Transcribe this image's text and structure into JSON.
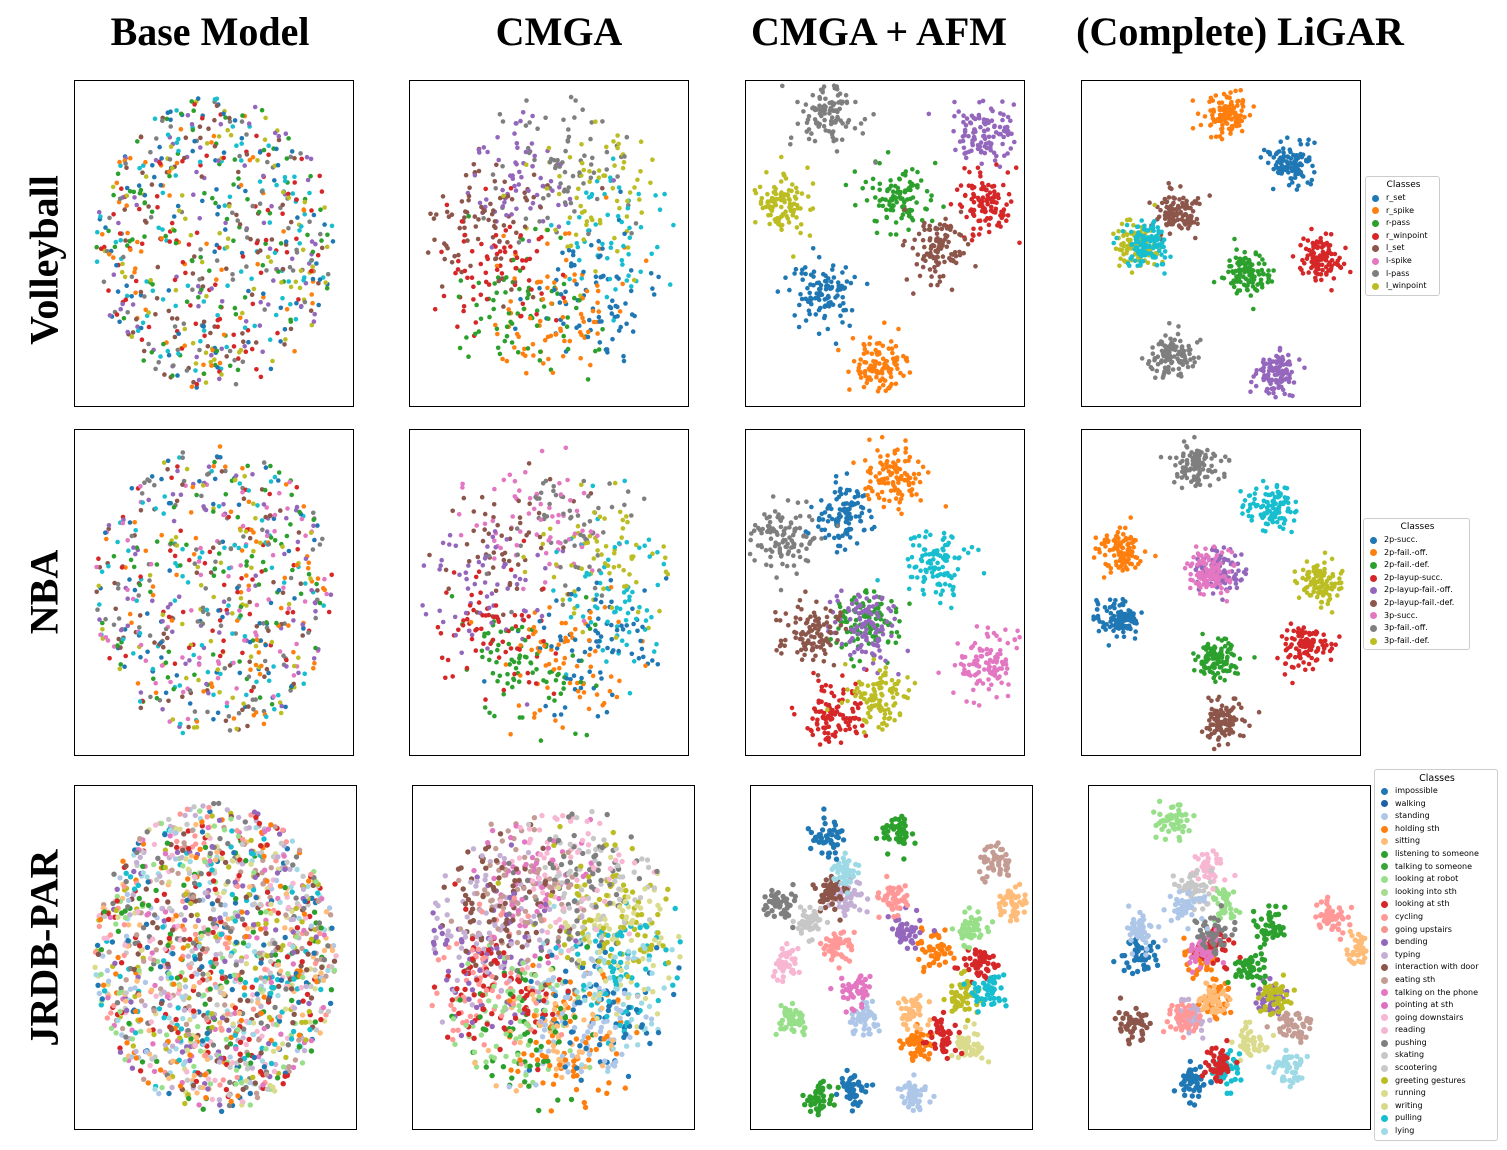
{
  "column_titles": [
    "Base Model",
    "CMGA",
    "CMGA + AFM",
    "(Complete) LiGAR"
  ],
  "row_titles": [
    "Volleyball",
    "NBA",
    "JRDB-PAR"
  ],
  "chart_data": [
    {
      "type": "scatter",
      "dataset": "Volleyball",
      "legend_title": "Classes",
      "legend_placement": "right",
      "classes": [
        {
          "name": "r_set",
          "color": "#1f77b4"
        },
        {
          "name": "r_spike",
          "color": "#ff7f0e"
        },
        {
          "name": "r-pass",
          "color": "#2ca02c"
        },
        {
          "name": "r_winpoint",
          "color": "#d62728"
        },
        {
          "name": "l_set",
          "color": "#8c564b"
        },
        {
          "name": "l-spike",
          "color": "#e377c2"
        },
        {
          "name": "l-pass",
          "color": "#7f7f7f"
        },
        {
          "name": "l_winpoint",
          "color": "#bcbd22"
        }
      ],
      "panel_colors": [
        "#1f77b4",
        "#ff7f0e",
        "#2ca02c",
        "#d62728",
        "#8c564b",
        "#9467bd",
        "#7f7f7f",
        "#bcbd22",
        "#17becf"
      ],
      "panels": [
        {
          "method": "Base Model",
          "layout": "mixed"
        },
        {
          "method": "CMGA",
          "layout": "partial"
        },
        {
          "method": "CMGA + AFM",
          "layout": "clusters",
          "clusters": [
            [
              0.27,
              0.65
            ],
            [
              0.48,
              0.87
            ],
            [
              0.55,
              0.36
            ],
            [
              0.86,
              0.38
            ],
            [
              0.69,
              0.52
            ],
            [
              0.85,
              0.16
            ],
            [
              0.3,
              0.1
            ],
            [
              0.12,
              0.38
            ]
          ]
        },
        {
          "method": "(Complete) LiGAR",
          "layout": "clusters",
          "clusters": [
            [
              0.75,
              0.25
            ],
            [
              0.52,
              0.1
            ],
            [
              0.59,
              0.59
            ],
            [
              0.86,
              0.55
            ],
            [
              0.34,
              0.41
            ],
            [
              0.7,
              0.9
            ],
            [
              0.33,
              0.85
            ],
            [
              0.2,
              0.5
            ],
            [
              0.23,
              0.5
            ]
          ]
        }
      ]
    },
    {
      "type": "scatter",
      "dataset": "NBA",
      "legend_title": "Classes",
      "legend_placement": "right",
      "classes": [
        {
          "name": "2p-succ.",
          "color": "#1f77b4"
        },
        {
          "name": "2p-fail.-off.",
          "color": "#ff7f0e"
        },
        {
          "name": "2p-fail.-def.",
          "color": "#2ca02c"
        },
        {
          "name": "2p-layup-succ.",
          "color": "#d62728"
        },
        {
          "name": "2p-layup-fail.-off.",
          "color": "#9467bd"
        },
        {
          "name": "2p-layup-fail.-def.",
          "color": "#8c564b"
        },
        {
          "name": "3p-succ.",
          "color": "#e377c2"
        },
        {
          "name": "3p-fail.-off.",
          "color": "#7f7f7f"
        },
        {
          "name": "3p-fail.-def.",
          "color": "#bcbd22"
        }
      ],
      "panel_colors": [
        "#1f77b4",
        "#ff7f0e",
        "#2ca02c",
        "#d62728",
        "#9467bd",
        "#8c564b",
        "#e377c2",
        "#7f7f7f",
        "#bcbd22",
        "#17becf"
      ],
      "panels": [
        {
          "method": "Base Model",
          "layout": "mixed"
        },
        {
          "method": "CMGA",
          "layout": "partial"
        },
        {
          "method": "CMGA + AFM",
          "layout": "clusters",
          "clusters": [
            [
              0.35,
              0.26
            ],
            [
              0.53,
              0.15
            ],
            [
              0.43,
              0.6
            ],
            [
              0.31,
              0.88
            ],
            [
              0.43,
              0.6
            ],
            [
              0.23,
              0.63
            ],
            [
              0.86,
              0.72
            ],
            [
              0.12,
              0.33
            ],
            [
              0.48,
              0.82
            ],
            [
              0.69,
              0.42
            ]
          ]
        },
        {
          "method": "(Complete) LiGAR",
          "layout": "clusters",
          "clusters": [
            [
              0.13,
              0.58
            ],
            [
              0.14,
              0.37
            ],
            [
              0.49,
              0.71
            ],
            [
              0.81,
              0.67
            ],
            [
              0.5,
              0.44
            ],
            [
              0.5,
              0.9
            ],
            [
              0.46,
              0.44
            ],
            [
              0.41,
              0.11
            ],
            [
              0.86,
              0.47
            ],
            [
              0.68,
              0.23
            ]
          ]
        }
      ]
    },
    {
      "type": "scatter",
      "dataset": "JRDB-PAR",
      "legend_title": "Classes",
      "legend_placement": "right",
      "classes": [
        {
          "name": "impossible",
          "color": "#1f77b4"
        },
        {
          "name": "walking",
          "color": "#1f5fa8"
        },
        {
          "name": "standing",
          "color": "#aec7e8"
        },
        {
          "name": "holding sth",
          "color": "#ff7f0e"
        },
        {
          "name": "sitting",
          "color": "#ffbb78"
        },
        {
          "name": "listening to someone",
          "color": "#2ca02c"
        },
        {
          "name": "talking to someone",
          "color": "#3aa43a"
        },
        {
          "name": "looking at robot",
          "color": "#98df8a"
        },
        {
          "name": "looking into sth",
          "color": "#a6dc8f"
        },
        {
          "name": "looking at sth",
          "color": "#d62728"
        },
        {
          "name": "cycling",
          "color": "#ff9896"
        },
        {
          "name": "going upstairs",
          "color": "#f5948c"
        },
        {
          "name": "bending",
          "color": "#9467bd"
        },
        {
          "name": "typing",
          "color": "#c5b0d5"
        },
        {
          "name": "interaction with door",
          "color": "#8c564b"
        },
        {
          "name": "eating sth",
          "color": "#c49c94"
        },
        {
          "name": "talking on the phone",
          "color": "#e377c2"
        },
        {
          "name": "pointing at sth",
          "color": "#de6fbf"
        },
        {
          "name": "going downstairs",
          "color": "#f7b6d2"
        },
        {
          "name": "reading",
          "color": "#f4b6d0"
        },
        {
          "name": "pushing",
          "color": "#7f7f7f"
        },
        {
          "name": "skating",
          "color": "#c7c7c7"
        },
        {
          "name": "scootering",
          "color": "#c9c9c9"
        },
        {
          "name": "greeting gestures",
          "color": "#bcbd22"
        },
        {
          "name": "running",
          "color": "#dbdb8d"
        },
        {
          "name": "writing",
          "color": "#d8d88b"
        },
        {
          "name": "pulling",
          "color": "#17becf"
        },
        {
          "name": "lying",
          "color": "#9edae5"
        }
      ],
      "panel_colors": [
        "#1f77b4",
        "#aec7e8",
        "#ff7f0e",
        "#ffbb78",
        "#2ca02c",
        "#98df8a",
        "#d62728",
        "#ff9896",
        "#9467bd",
        "#c5b0d5",
        "#8c564b",
        "#c49c94",
        "#e377c2",
        "#f7b6d2",
        "#7f7f7f",
        "#c7c7c7",
        "#bcbd22",
        "#dbdb8d",
        "#17becf",
        "#9edae5"
      ],
      "panels": [
        {
          "method": "Base Model",
          "layout": "mixed"
        },
        {
          "method": "CMGA",
          "layout": "partial"
        },
        {
          "method": "CMGA + AFM",
          "layout": "clusters",
          "clusters": [
            [
              0.36,
              0.88
            ],
            [
              0.4,
              0.68
            ],
            [
              0.65,
              0.48
            ],
            [
              0.93,
              0.35
            ],
            [
              0.52,
              0.14
            ],
            [
              0.14,
              0.68
            ],
            [
              0.82,
              0.52
            ],
            [
              0.3,
              0.47
            ],
            [
              0.55,
              0.42
            ],
            [
              0.34,
              0.32
            ],
            [
              0.28,
              0.3
            ],
            [
              0.87,
              0.22
            ],
            [
              0.37,
              0.6
            ],
            [
              0.12,
              0.52
            ],
            [
              0.1,
              0.35
            ],
            [
              0.2,
              0.4
            ],
            [
              0.75,
              0.62
            ],
            [
              0.78,
              0.76
            ],
            [
              0.85,
              0.6
            ],
            [
              0.33,
              0.25
            ],
            [
              0.28,
              0.15
            ],
            [
              0.58,
              0.9
            ],
            [
              0.6,
              0.75
            ],
            [
              0.58,
              0.66
            ],
            [
              0.24,
              0.91
            ],
            [
              0.78,
              0.42
            ],
            [
              0.68,
              0.73
            ],
            [
              0.52,
              0.33
            ]
          ]
        },
        {
          "method": "(Complete) LiGAR",
          "layout": "clusters",
          "clusters": [
            [
              0.19,
              0.49
            ],
            [
              0.19,
              0.42
            ],
            [
              0.4,
              0.5
            ],
            [
              0.97,
              0.48
            ],
            [
              0.64,
              0.42
            ],
            [
              0.47,
              0.34
            ],
            [
              0.44,
              0.48
            ],
            [
              0.86,
              0.38
            ],
            [
              0.65,
              0.63
            ],
            [
              0.37,
              0.67
            ],
            [
              0.16,
              0.7
            ],
            [
              0.73,
              0.7
            ],
            [
              0.4,
              0.48
            ],
            [
              0.43,
              0.24
            ],
            [
              0.44,
              0.43
            ],
            [
              0.37,
              0.3
            ],
            [
              0.66,
              0.62
            ],
            [
              0.58,
              0.75
            ],
            [
              0.49,
              0.83
            ],
            [
              0.72,
              0.82
            ],
            [
              0.37,
              0.87
            ],
            [
              0.35,
              0.35
            ],
            [
              0.46,
              0.62
            ],
            [
              0.44,
              0.63
            ],
            [
              0.58,
              0.52
            ],
            [
              0.29,
              0.1
            ],
            [
              0.46,
              0.81
            ],
            [
              0.33,
              0.68
            ]
          ]
        }
      ]
    }
  ]
}
